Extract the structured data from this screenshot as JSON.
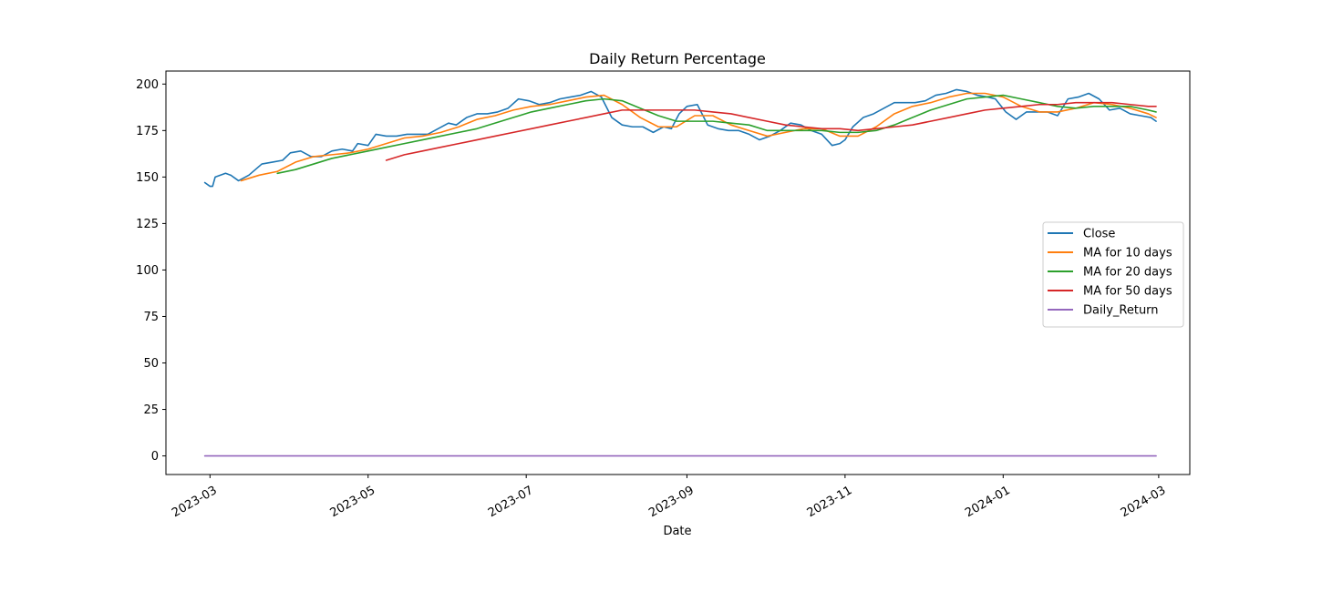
{
  "chart_data": {
    "type": "line",
    "title": "Daily Return Percentage",
    "xlabel": "Date",
    "ylabel": "",
    "xlim": [
      "2023-02-12",
      "2024-03-13"
    ],
    "ylim": [
      -10,
      207
    ],
    "x_ticks": [
      "2023-03-01",
      "2023-05-01",
      "2023-07-01",
      "2023-09-01",
      "2023-11-01",
      "2024-01-01",
      "2024-03-01"
    ],
    "x_tick_labels": [
      "2023-03",
      "2023-05",
      "2023-07",
      "2023-09",
      "2023-11",
      "2024-01",
      "2024-03"
    ],
    "y_ticks": [
      0,
      25,
      50,
      75,
      100,
      125,
      150,
      175,
      200
    ],
    "grid": false,
    "legend_position": "center-right",
    "series": [
      {
        "name": "Close",
        "color": "#1f77b4",
        "points": [
          [
            "2023-02-27",
            147
          ],
          [
            "2023-03-01",
            145
          ],
          [
            "2023-03-02",
            145
          ],
          [
            "2023-03-03",
            150
          ],
          [
            "2023-03-07",
            152
          ],
          [
            "2023-03-09",
            151
          ],
          [
            "2023-03-12",
            148
          ],
          [
            "2023-03-16",
            151
          ],
          [
            "2023-03-21",
            157
          ],
          [
            "2023-03-25",
            158
          ],
          [
            "2023-03-29",
            159
          ],
          [
            "2023-04-01",
            163
          ],
          [
            "2023-04-05",
            164
          ],
          [
            "2023-04-09",
            161
          ],
          [
            "2023-04-13",
            161
          ],
          [
            "2023-04-17",
            164
          ],
          [
            "2023-04-21",
            165
          ],
          [
            "2023-04-25",
            164
          ],
          [
            "2023-04-27",
            168
          ],
          [
            "2023-05-01",
            167
          ],
          [
            "2023-05-04",
            173
          ],
          [
            "2023-05-08",
            172
          ],
          [
            "2023-05-12",
            172
          ],
          [
            "2023-05-16",
            173
          ],
          [
            "2023-05-20",
            173
          ],
          [
            "2023-05-24",
            173
          ],
          [
            "2023-05-28",
            176
          ],
          [
            "2023-06-01",
            179
          ],
          [
            "2023-06-04",
            178
          ],
          [
            "2023-06-08",
            182
          ],
          [
            "2023-06-12",
            184
          ],
          [
            "2023-06-16",
            184
          ],
          [
            "2023-06-20",
            185
          ],
          [
            "2023-06-24",
            187
          ],
          [
            "2023-06-28",
            192
          ],
          [
            "2023-07-02",
            191
          ],
          [
            "2023-07-06",
            189
          ],
          [
            "2023-07-10",
            190
          ],
          [
            "2023-07-14",
            192
          ],
          [
            "2023-07-18",
            193
          ],
          [
            "2023-07-22",
            194
          ],
          [
            "2023-07-26",
            196
          ],
          [
            "2023-07-30",
            193
          ],
          [
            "2023-08-03",
            182
          ],
          [
            "2023-08-07",
            178
          ],
          [
            "2023-08-11",
            177
          ],
          [
            "2023-08-15",
            177
          ],
          [
            "2023-08-19",
            174
          ],
          [
            "2023-08-23",
            177
          ],
          [
            "2023-08-26",
            176
          ],
          [
            "2023-08-29",
            184
          ],
          [
            "2023-09-01",
            188
          ],
          [
            "2023-09-05",
            189
          ],
          [
            "2023-09-09",
            178
          ],
          [
            "2023-09-13",
            176
          ],
          [
            "2023-09-17",
            175
          ],
          [
            "2023-09-21",
            175
          ],
          [
            "2023-09-25",
            173
          ],
          [
            "2023-09-29",
            170
          ],
          [
            "2023-10-03",
            172
          ],
          [
            "2023-10-07",
            175
          ],
          [
            "2023-10-11",
            179
          ],
          [
            "2023-10-15",
            178
          ],
          [
            "2023-10-19",
            175
          ],
          [
            "2023-10-23",
            173
          ],
          [
            "2023-10-27",
            167
          ],
          [
            "2023-10-30",
            168
          ],
          [
            "2023-11-01",
            170
          ],
          [
            "2023-11-04",
            177
          ],
          [
            "2023-11-08",
            182
          ],
          [
            "2023-11-12",
            184
          ],
          [
            "2023-11-16",
            187
          ],
          [
            "2023-11-20",
            190
          ],
          [
            "2023-11-24",
            190
          ],
          [
            "2023-11-28",
            190
          ],
          [
            "2023-12-02",
            191
          ],
          [
            "2023-12-06",
            194
          ],
          [
            "2023-12-10",
            195
          ],
          [
            "2023-12-14",
            197
          ],
          [
            "2023-12-18",
            196
          ],
          [
            "2023-12-22",
            194
          ],
          [
            "2023-12-26",
            193
          ],
          [
            "2023-12-29",
            192
          ],
          [
            "2024-01-02",
            185
          ],
          [
            "2024-01-06",
            181
          ],
          [
            "2024-01-10",
            185
          ],
          [
            "2024-01-14",
            185
          ],
          [
            "2024-01-18",
            185
          ],
          [
            "2024-01-22",
            183
          ],
          [
            "2024-01-26",
            192
          ],
          [
            "2024-01-30",
            193
          ],
          [
            "2024-02-03",
            195
          ],
          [
            "2024-02-07",
            192
          ],
          [
            "2024-02-11",
            186
          ],
          [
            "2024-02-15",
            187
          ],
          [
            "2024-02-19",
            184
          ],
          [
            "2024-02-23",
            183
          ],
          [
            "2024-02-27",
            182
          ],
          [
            "2024-02-29",
            180
          ]
        ]
      },
      {
        "name": "MA for 10 days",
        "color": "#ff7f0e",
        "points": [
          [
            "2023-03-13",
            148
          ],
          [
            "2023-03-20",
            151
          ],
          [
            "2023-03-27",
            153
          ],
          [
            "2023-04-03",
            158
          ],
          [
            "2023-04-10",
            161
          ],
          [
            "2023-04-17",
            162
          ],
          [
            "2023-04-24",
            163
          ],
          [
            "2023-05-01",
            165
          ],
          [
            "2023-05-08",
            168
          ],
          [
            "2023-05-15",
            171
          ],
          [
            "2023-05-22",
            172
          ],
          [
            "2023-05-29",
            174
          ],
          [
            "2023-06-05",
            177
          ],
          [
            "2023-06-12",
            181
          ],
          [
            "2023-06-19",
            183
          ],
          [
            "2023-06-26",
            186
          ],
          [
            "2023-07-03",
            188
          ],
          [
            "2023-07-10",
            189
          ],
          [
            "2023-07-17",
            191
          ],
          [
            "2023-07-24",
            193
          ],
          [
            "2023-07-31",
            194
          ],
          [
            "2023-08-07",
            189
          ],
          [
            "2023-08-14",
            182
          ],
          [
            "2023-08-21",
            177
          ],
          [
            "2023-08-28",
            177
          ],
          [
            "2023-09-04",
            183
          ],
          [
            "2023-09-11",
            183
          ],
          [
            "2023-09-18",
            178
          ],
          [
            "2023-09-25",
            175
          ],
          [
            "2023-10-02",
            172
          ],
          [
            "2023-10-09",
            174
          ],
          [
            "2023-10-16",
            176
          ],
          [
            "2023-10-23",
            176
          ],
          [
            "2023-10-30",
            172
          ],
          [
            "2023-11-06",
            172
          ],
          [
            "2023-11-13",
            177
          ],
          [
            "2023-11-20",
            184
          ],
          [
            "2023-11-27",
            188
          ],
          [
            "2023-12-04",
            190
          ],
          [
            "2023-12-11",
            193
          ],
          [
            "2023-12-18",
            195
          ],
          [
            "2023-12-25",
            195
          ],
          [
            "2024-01-01",
            193
          ],
          [
            "2024-01-08",
            188
          ],
          [
            "2024-01-15",
            185
          ],
          [
            "2024-01-22",
            185
          ],
          [
            "2024-01-29",
            187
          ],
          [
            "2024-02-05",
            190
          ],
          [
            "2024-02-12",
            189
          ],
          [
            "2024-02-19",
            187
          ],
          [
            "2024-02-26",
            184
          ],
          [
            "2024-02-29",
            182
          ]
        ]
      },
      {
        "name": "MA for 20 days",
        "color": "#2ca02c",
        "points": [
          [
            "2023-03-27",
            152
          ],
          [
            "2023-04-03",
            154
          ],
          [
            "2023-04-10",
            157
          ],
          [
            "2023-04-17",
            160
          ],
          [
            "2023-04-24",
            162
          ],
          [
            "2023-05-01",
            164
          ],
          [
            "2023-05-08",
            166
          ],
          [
            "2023-05-15",
            168
          ],
          [
            "2023-05-22",
            170
          ],
          [
            "2023-05-29",
            172
          ],
          [
            "2023-06-05",
            174
          ],
          [
            "2023-06-12",
            176
          ],
          [
            "2023-06-19",
            179
          ],
          [
            "2023-06-26",
            182
          ],
          [
            "2023-07-03",
            185
          ],
          [
            "2023-07-10",
            187
          ],
          [
            "2023-07-17",
            189
          ],
          [
            "2023-07-24",
            191
          ],
          [
            "2023-07-31",
            192
          ],
          [
            "2023-08-07",
            191
          ],
          [
            "2023-08-14",
            187
          ],
          [
            "2023-08-21",
            183
          ],
          [
            "2023-08-28",
            180
          ],
          [
            "2023-09-04",
            180
          ],
          [
            "2023-09-11",
            180
          ],
          [
            "2023-09-18",
            179
          ],
          [
            "2023-09-25",
            178
          ],
          [
            "2023-10-02",
            175
          ],
          [
            "2023-10-09",
            175
          ],
          [
            "2023-10-16",
            175
          ],
          [
            "2023-10-23",
            175
          ],
          [
            "2023-10-30",
            174
          ],
          [
            "2023-11-06",
            174
          ],
          [
            "2023-11-13",
            175
          ],
          [
            "2023-11-20",
            178
          ],
          [
            "2023-11-27",
            182
          ],
          [
            "2023-12-04",
            186
          ],
          [
            "2023-12-11",
            189
          ],
          [
            "2023-12-18",
            192
          ],
          [
            "2023-12-25",
            193
          ],
          [
            "2024-01-01",
            194
          ],
          [
            "2024-01-08",
            192
          ],
          [
            "2024-01-15",
            190
          ],
          [
            "2024-01-22",
            188
          ],
          [
            "2024-01-29",
            187
          ],
          [
            "2024-02-05",
            188
          ],
          [
            "2024-02-12",
            188
          ],
          [
            "2024-02-19",
            188
          ],
          [
            "2024-02-26",
            186
          ],
          [
            "2024-02-29",
            185
          ]
        ]
      },
      {
        "name": "MA for 50 days",
        "color": "#d62728",
        "points": [
          [
            "2023-05-08",
            159
          ],
          [
            "2023-05-15",
            162
          ],
          [
            "2023-05-22",
            164
          ],
          [
            "2023-05-29",
            166
          ],
          [
            "2023-06-05",
            168
          ],
          [
            "2023-06-12",
            170
          ],
          [
            "2023-06-19",
            172
          ],
          [
            "2023-06-26",
            174
          ],
          [
            "2023-07-03",
            176
          ],
          [
            "2023-07-10",
            178
          ],
          [
            "2023-07-17",
            180
          ],
          [
            "2023-07-24",
            182
          ],
          [
            "2023-07-31",
            184
          ],
          [
            "2023-08-07",
            186
          ],
          [
            "2023-08-14",
            186
          ],
          [
            "2023-08-21",
            186
          ],
          [
            "2023-08-28",
            186
          ],
          [
            "2023-09-04",
            186
          ],
          [
            "2023-09-11",
            185
          ],
          [
            "2023-09-18",
            184
          ],
          [
            "2023-09-25",
            182
          ],
          [
            "2023-10-02",
            180
          ],
          [
            "2023-10-09",
            178
          ],
          [
            "2023-10-16",
            177
          ],
          [
            "2023-10-23",
            176
          ],
          [
            "2023-10-30",
            176
          ],
          [
            "2023-11-06",
            175
          ],
          [
            "2023-11-13",
            176
          ],
          [
            "2023-11-20",
            177
          ],
          [
            "2023-11-27",
            178
          ],
          [
            "2023-12-04",
            180
          ],
          [
            "2023-12-11",
            182
          ],
          [
            "2023-12-18",
            184
          ],
          [
            "2023-12-25",
            186
          ],
          [
            "2024-01-01",
            187
          ],
          [
            "2024-01-08",
            188
          ],
          [
            "2024-01-15",
            189
          ],
          [
            "2024-01-22",
            189
          ],
          [
            "2024-01-29",
            190
          ],
          [
            "2024-02-05",
            190
          ],
          [
            "2024-02-12",
            190
          ],
          [
            "2024-02-19",
            189
          ],
          [
            "2024-02-26",
            188
          ],
          [
            "2024-02-29",
            188
          ]
        ]
      },
      {
        "name": "Daily_Return",
        "color": "#9467bd",
        "points": [
          [
            "2023-02-27",
            0
          ],
          [
            "2023-05-01",
            0
          ],
          [
            "2023-07-01",
            0
          ],
          [
            "2023-09-01",
            0
          ],
          [
            "2023-11-01",
            0
          ],
          [
            "2024-01-01",
            0
          ],
          [
            "2024-02-29",
            0
          ]
        ]
      }
    ]
  }
}
